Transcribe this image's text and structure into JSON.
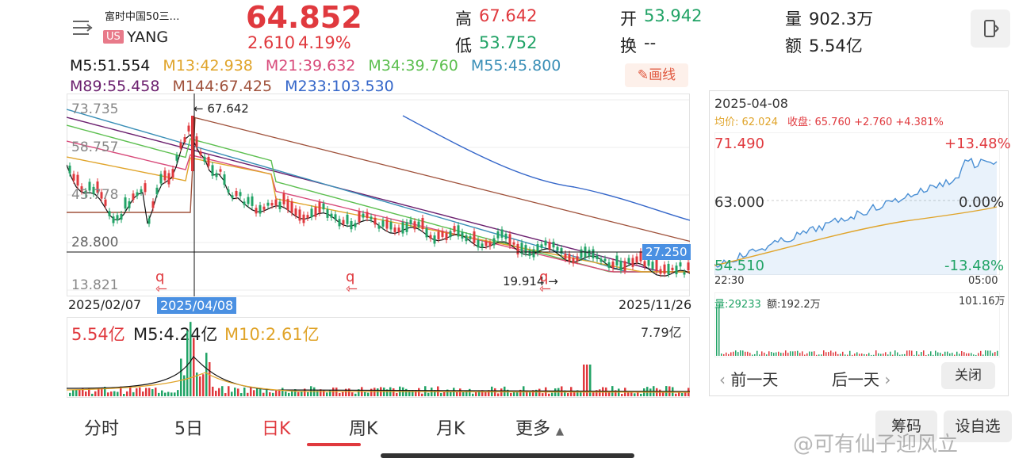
{
  "header": {
    "name": "富时中国50三…",
    "market_badge": "US",
    "ticker": "YANG",
    "price": "64.852",
    "change": "2.610",
    "change_pct": "4.19%",
    "high_label": "高",
    "high": "67.642",
    "low_label": "低",
    "low": "53.752",
    "open_label": "开",
    "open": "53.942",
    "turnover_label": "换",
    "turnover": "--",
    "volume_label": "量",
    "volume": "902.3万",
    "amount_label": "额",
    "amount": "5.54亿"
  },
  "ma_legend": [
    {
      "text": "M5:51.554",
      "color": "#111111"
    },
    {
      "text": "M13:42.938",
      "color": "#e0a42a"
    },
    {
      "text": "M21:39.632",
      "color": "#d84a7a"
    },
    {
      "text": "M34:39.760",
      "color": "#5cbf4f"
    },
    {
      "text": "M55:45.800",
      "color": "#3a8fb7"
    },
    {
      "text": "M89:55.458",
      "color": "#6b1f6e"
    },
    {
      "text": "M144:67.425",
      "color": "#a0523c"
    },
    {
      "text": "M233:103.530",
      "color": "#3466c9"
    }
  ],
  "draw_button": "画线",
  "kline": {
    "y_labels": [
      "73.735",
      "58.757",
      "43.778",
      "28.800",
      "13.821"
    ],
    "high_marker": "67.642",
    "low_marker": "19.914",
    "crosshair_value": "27.250",
    "start_date": "2025/02/07",
    "crosshair_date": "2025/04/08",
    "end_date": "2025/11/26",
    "div_marker": "q"
  },
  "volume_panel": {
    "amount": "5.54亿",
    "m5": "M5:4.24亿",
    "m10": "M10:2.61亿",
    "max": "7.79亿"
  },
  "tabs": [
    "分时",
    "5日",
    "日K",
    "周K",
    "月K",
    "更多"
  ],
  "active_tab": "日K",
  "bottom_buttons": [
    "筹码",
    "设自选"
  ],
  "watermark": "@可有仙子迎风立",
  "side_panel": {
    "date": "2025-04-08",
    "avg_label": "均价: 62.024",
    "close_label": "收盘: 65.760 +2.760 +4.381%",
    "top_price": "71.490",
    "top_pct": "+13.48%",
    "mid_price": "63.000",
    "mid_pct": "0.00%",
    "bottom_price": "54.510",
    "bottom_pct": "-13.48%",
    "start_time": "22:30",
    "end_time": "05:00",
    "vol_label": "量:29233",
    "amt_label": "额:192.2万",
    "vol_max": "101.16万",
    "prev_day": "前一天",
    "next_day": "后一天",
    "close_button": "关闭"
  }
}
